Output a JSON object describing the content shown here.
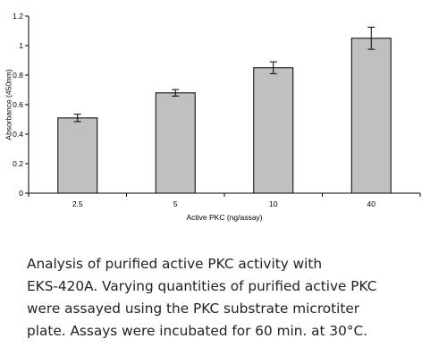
{
  "chart_data": {
    "type": "bar",
    "categories": [
      "2.5",
      "5",
      "10",
      "40"
    ],
    "values": [
      0.51,
      0.68,
      0.85,
      1.05
    ],
    "error": [
      0.025,
      0.022,
      0.04,
      0.075
    ],
    "xlabel": "Active PKC (ng/assay)",
    "ylabel": "Absorbance (450nm)",
    "ylim": [
      0,
      1.2
    ],
    "yticks": [
      0,
      0.2,
      0.4,
      0.6,
      0.8,
      1,
      1.2
    ],
    "ytick_labels": [
      "0",
      "0.2",
      "0.4",
      "0.6",
      "0.8",
      "1",
      "1.2"
    ],
    "grid": false,
    "legend": "none",
    "colors": {
      "bar_fill": "#c0c0c0",
      "bar_stroke": "#000000",
      "axis": "#000000"
    }
  },
  "caption": {
    "lines": [
      "Analysis of purified active PKC activity with",
      "EKS-420A.  Varying quantities of purified active PKC",
      "were assayed using the PKC substrate microtiter",
      "plate.  Assays were incubated for 60 min. at 30°C."
    ]
  }
}
